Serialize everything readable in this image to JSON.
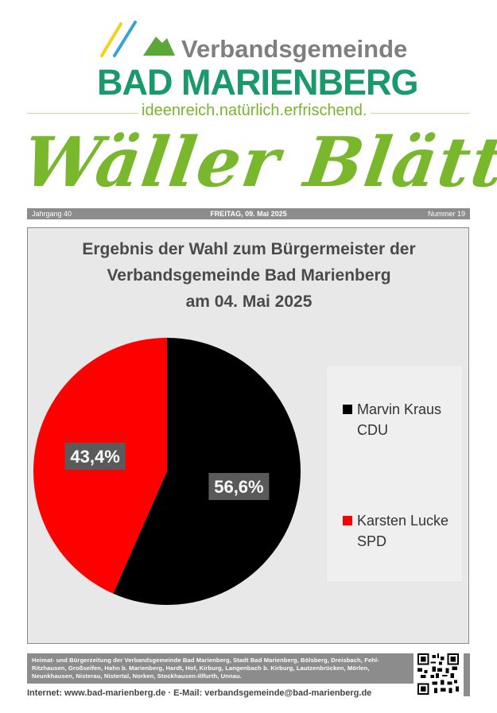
{
  "header": {
    "vg_label": "Verbandsgemeinde",
    "town_name": "BAD MARIENBERG",
    "slogan": "ideenreich.natürlich.erfrischend.",
    "masthead": "Wäller Blättchen",
    "brand_green": "#1a9a6c",
    "accent_green": "#79b72d"
  },
  "info_bar": {
    "volume": "Jahrgang 40",
    "date": "FREITAG, 09. Mai 2025",
    "issue": "Nummer 19"
  },
  "chart_data": {
    "type": "pie",
    "title_lines": [
      "Ergebnis der Wahl zum Bürgermeister der",
      "Verbandsgemeinde Bad Marienberg",
      "am 04. Mai 2025"
    ],
    "slices": [
      {
        "label_lines": [
          "Marvin Kraus",
          "CDU"
        ],
        "value": 56.6,
        "display": "56,6%",
        "color": "#000000"
      },
      {
        "label_lines": [
          "Karsten Lucke",
          "SPD"
        ],
        "value": 43.4,
        "display": "43,4%",
        "color": "#ff0000"
      }
    ],
    "legend_position": "right"
  },
  "footer": {
    "description": "Heimat- und Bürgerzeitung der Verbandsgemeinde Bad Marienberg, Stadt Bad Marienberg, Bölsberg, Dreisbach, Fehl-Ritzhausen, Großseifen, Hahn b. Marienberg, Hardt, Hof, Kirburg, Langenbach b. Kirburg, Lautzenbrücken, Mörlen, Neunkhausen, Nisterau, Nistertal, Norken, Stockhausen-Illfurth, Unnau.",
    "contact": "Internet: www.bad-marienberg.de · E-Mail: verbandsgemeinde@bad-marienberg.de"
  }
}
